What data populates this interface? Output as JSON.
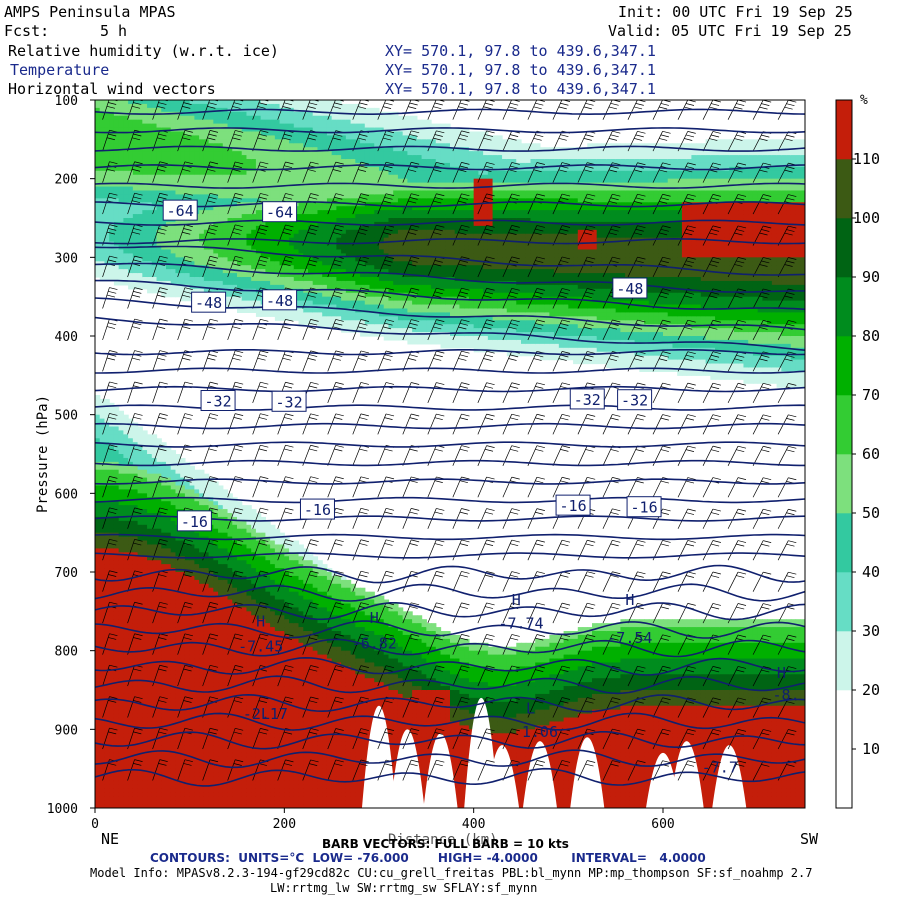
{
  "header": {
    "title": "AMPS Peninsula MPAS",
    "init": "Init: 00 UTC Fri 19 Sep 25",
    "fcst_label": "Fcst:",
    "fcst_value": "5 h",
    "valid": "Valid: 05 UTC Fri 19 Sep 25",
    "fields": [
      {
        "name": "Relative humidity (w.r.t. ice)",
        "xy": "XY= 570.1, 97.8 to 439.6,347.1"
      },
      {
        "name": "Temperature",
        "xy": "XY= 570.1, 97.8 to 439.6,347.1"
      },
      {
        "name": "Horizontal wind vectors",
        "xy": "XY= 570.1, 97.8 to 439.6,347.1"
      }
    ]
  },
  "footer": {
    "barb_line": "BARB VECTORS: FULL BARB = 10 kts",
    "contours_line": "CONTOURS:  UNITS=°C  LOW= -76.000       HIGH= -4.0000        INTERVAL=   4.0000",
    "model_info": "Model Info: MPASv8.2.3-194-gf29cd82c CU:cu_grell_freitas PBL:bl_mynn MP:mp_thompson SF:sf_noahmp 2.7",
    "model_info2": "LW:rrtmg_lw SW:rrtmg_sw SFLAY:sf_mynn",
    "left_end": "NE",
    "right_end": "SW",
    "xlabel_partial": "Distance (km)"
  },
  "colorbar": {
    "unit": "%",
    "levels": [
      10,
      20,
      30,
      40,
      50,
      60,
      70,
      80,
      90,
      100,
      110
    ],
    "colors": [
      "#ffffff",
      "#ffffff",
      "#ccf5ea",
      "#66ddc5",
      "#33c9a0",
      "#7de07d",
      "#33cc33",
      "#00b000",
      "#008c1e",
      "#006414",
      "#3c5a14",
      "#c41e0a"
    ]
  },
  "chart_data": {
    "type": "heatmap",
    "title": "",
    "xlabel": "Distance (km)",
    "ylabel": "Pressure (hPa)",
    "xlim": [
      0,
      750
    ],
    "ylim": [
      1000,
      100
    ],
    "x_ticks": [
      0,
      200,
      400,
      600
    ],
    "y_ticks": [
      100,
      200,
      300,
      400,
      500,
      600,
      700,
      800,
      900,
      1000
    ],
    "temperature_contour_labels": [
      {
        "text": "-64",
        "x": 90,
        "p": 240
      },
      {
        "text": "-64",
        "x": 195,
        "p": 242
      },
      {
        "text": "-48",
        "x": 120,
        "p": 357
      },
      {
        "text": "-48",
        "x": 195,
        "p": 354
      },
      {
        "text": "-48",
        "x": 565,
        "p": 339
      },
      {
        "text": "-32",
        "x": 130,
        "p": 482
      },
      {
        "text": "-32",
        "x": 205,
        "p": 483
      },
      {
        "text": "-32",
        "x": 520,
        "p": 480
      },
      {
        "text": "-32",
        "x": 570,
        "p": 481
      },
      {
        "text": "-16",
        "x": 105,
        "p": 635
      },
      {
        "text": "-16",
        "x": 235,
        "p": 620
      },
      {
        "text": "-16",
        "x": 505,
        "p": 615
      },
      {
        "text": "-16",
        "x": 580,
        "p": 617
      }
    ],
    "extrema_labels": [
      {
        "text": "H",
        "x": 175,
        "p": 769
      },
      {
        "text": "-7.45",
        "x": 175,
        "p": 801
      },
      {
        "text": "H",
        "x": 295,
        "p": 765
      },
      {
        "text": "-6.82",
        "x": 295,
        "p": 797
      },
      {
        "text": "H",
        "x": 445,
        "p": 742
      },
      {
        "text": "-7.74",
        "x": 450,
        "p": 772
      },
      {
        "text": "H",
        "x": 565,
        "p": 742
      },
      {
        "text": "-7.54",
        "x": 565,
        "p": 790
      },
      {
        "text": "H",
        "x": 725,
        "p": 835
      },
      {
        "text": "-8.",
        "x": 730,
        "p": 863
      },
      {
        "text": "L",
        "x": 180,
        "p": 887
      },
      {
        "text": "-2.17",
        "x": 180,
        "p": 887
      },
      {
        "text": "L",
        "x": 460,
        "p": 880
      },
      {
        "text": "1.06",
        "x": 470,
        "p": 910
      },
      {
        "text": "-7.7",
        "x": 660,
        "p": 955
      }
    ],
    "grid": false
  }
}
